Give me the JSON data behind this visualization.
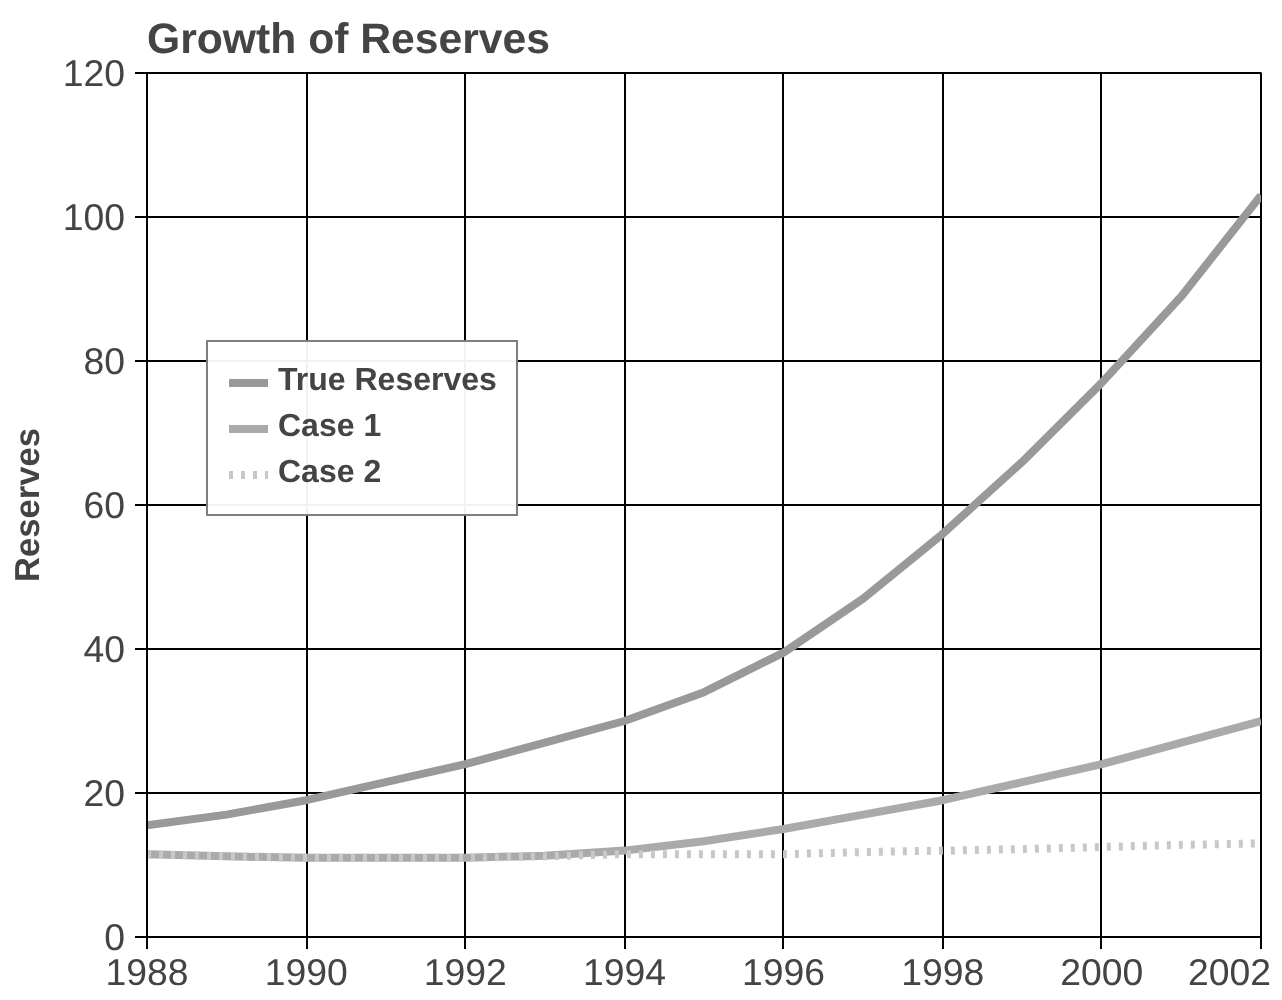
{
  "chart_data": {
    "type": "line",
    "title": "Growth of Reserves",
    "ylabel": "Reserves",
    "x": [
      1988,
      1989,
      1990,
      1991,
      1992,
      1993,
      1994,
      1995,
      1996,
      1997,
      1998,
      1999,
      2000,
      2001,
      2002
    ],
    "series": [
      {
        "name": "True Reserves",
        "color": "#999999",
        "line_style": "solid",
        "values": [
          15.5,
          17,
          19,
          21.5,
          24,
          27,
          30,
          34,
          39.5,
          47,
          56,
          66,
          77,
          89,
          103
        ]
      },
      {
        "name": "Case 1",
        "color": "#aaaaaa",
        "line_style": "solid",
        "values": [
          11.5,
          11.2,
          11,
          11,
          11,
          11.3,
          12,
          13.3,
          15,
          17,
          19,
          21.5,
          24,
          27,
          30
        ]
      },
      {
        "name": "Case 2",
        "color": "#c8c8c8",
        "line_style": "dotted",
        "values": [
          11.5,
          11.2,
          11,
          11,
          11,
          11.2,
          11.5,
          11.5,
          11.5,
          11.8,
          12,
          12.2,
          12.5,
          12.8,
          13
        ]
      }
    ],
    "xlim": [
      1988,
      2002
    ],
    "xticks": [
      1988,
      1990,
      1992,
      1994,
      1996,
      1998,
      2000,
      2002
    ],
    "ylim": [
      0,
      120
    ],
    "yticks": [
      0,
      20,
      40,
      60,
      80,
      100,
      120
    ],
    "grid": true,
    "legend": "top left",
    "marker": "none"
  }
}
